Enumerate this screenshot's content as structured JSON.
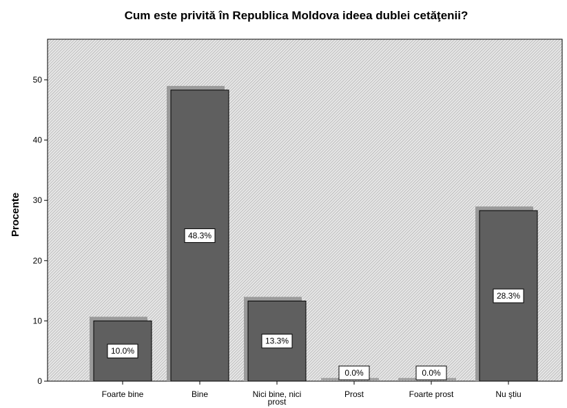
{
  "chart_data": {
    "type": "bar",
    "title": "Cum este privită în Republica Moldova ideea dublei cetăţenii?",
    "xlabel": "",
    "ylabel": "Procente",
    "categories": [
      "Foarte bine",
      "Bine",
      "Nici bine, nici prost",
      "Prost",
      "Foarte prost",
      "Nu ştiu"
    ],
    "values": [
      10.0,
      48.3,
      13.3,
      0.0,
      0.0,
      28.3
    ],
    "data_labels": [
      "10.0%",
      "48.3%",
      "13.3%",
      "0.0%",
      "0.0%",
      "28.3%"
    ],
    "ylim": [
      0,
      56
    ],
    "yticks": [
      0,
      10,
      20,
      30,
      40,
      50
    ],
    "grid": false,
    "legend": "none",
    "colors": {
      "bar": "#5f5f5f",
      "bar_shadow": "#9a9a9a",
      "bar_outline": "#000000",
      "plot_background": "hatched-light-gray",
      "label_box": "#ffffff"
    }
  }
}
